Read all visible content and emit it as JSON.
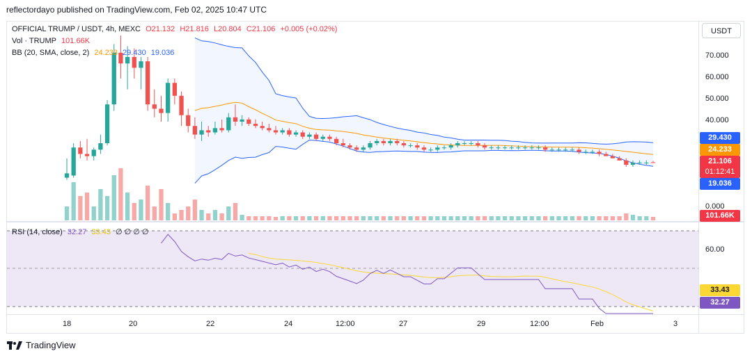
{
  "header": {
    "publisher_line": "reflectordayo published on TradingView.com, Feb 02, 2025 10:47 UTC"
  },
  "symbol": {
    "name": "OFFICIAL TRUMP / USDT, 4h, MEXC",
    "open": "O21.132",
    "high": "H21.816",
    "low": "L20.804",
    "close": "C21.106",
    "change": "+0.005 (+0.02%)"
  },
  "vol_legend": {
    "label": "Vol · TRUMP",
    "value": "101.66K"
  },
  "bb_legend": {
    "label": "BB (20, SMA, close, 2)",
    "basis": "24.233",
    "upper": "29.430",
    "lower": "19.036"
  },
  "rsi_legend": {
    "label": "RSI (14, close)",
    "rsi": "32.27",
    "ma": "33.43",
    "extra": "∅ ∅ ∅ ∅"
  },
  "price_axis": {
    "currency": "USDT",
    "ticks": [
      "70.000",
      "60.000",
      "50.000",
      "40.000",
      "0.000"
    ],
    "tags": {
      "upper": "29.430",
      "basis": "24.233",
      "price": "21.106",
      "countdown": "01:12:41",
      "lower": "19.036",
      "volume": "101.66K"
    }
  },
  "rsi_axis": {
    "ticks": [
      "60.00"
    ],
    "tags": {
      "ma": "33.43",
      "rsi": "32.27"
    }
  },
  "time_axis": {
    "ticks": [
      "18",
      "20",
      "22",
      "24",
      "12:00",
      "27",
      "29",
      "12:00",
      "Feb",
      "3"
    ]
  },
  "footer": {
    "brand": "TradingView"
  },
  "colors": {
    "up": "#26a69a",
    "down": "#ef5350",
    "bb_band": "#2962ff",
    "bb_basis": "#ff9800",
    "rsi_line": "#7e57c2",
    "rsi_ma": "#fdd835",
    "rsi_bg": "#ede7f6"
  },
  "chart_data": {
    "type": "candlestick",
    "candles": [
      {
        "o": 14,
        "h": 23,
        "l": 13,
        "c": 16
      },
      {
        "o": 15,
        "h": 30,
        "l": 14,
        "c": 28
      },
      {
        "o": 28,
        "h": 31,
        "l": 23,
        "c": 25
      },
      {
        "o": 25,
        "h": 32,
        "l": 22,
        "c": 24
      },
      {
        "o": 24,
        "h": 28,
        "l": 22,
        "c": 27
      },
      {
        "o": 27,
        "h": 34,
        "l": 25,
        "c": 30
      },
      {
        "o": 30,
        "h": 50,
        "l": 29,
        "c": 48
      },
      {
        "o": 48,
        "h": 76,
        "l": 45,
        "c": 72
      },
      {
        "o": 72,
        "h": 80,
        "l": 60,
        "c": 67
      },
      {
        "o": 67,
        "h": 75,
        "l": 55,
        "c": 70
      },
      {
        "o": 70,
        "h": 74,
        "l": 60,
        "c": 65
      },
      {
        "o": 65,
        "h": 70,
        "l": 55,
        "c": 68
      },
      {
        "o": 68,
        "h": 70,
        "l": 45,
        "c": 48
      },
      {
        "o": 48,
        "h": 55,
        "l": 42,
        "c": 46
      },
      {
        "o": 46,
        "h": 52,
        "l": 40,
        "c": 44
      },
      {
        "o": 44,
        "h": 60,
        "l": 40,
        "c": 58
      },
      {
        "o": 58,
        "h": 60,
        "l": 48,
        "c": 52
      },
      {
        "o": 52,
        "h": 54,
        "l": 38,
        "c": 43
      },
      {
        "o": 43,
        "h": 46,
        "l": 35,
        "c": 38
      },
      {
        "o": 38,
        "h": 42,
        "l": 32,
        "c": 34
      },
      {
        "o": 34,
        "h": 40,
        "l": 31,
        "c": 36
      },
      {
        "o": 36,
        "h": 38,
        "l": 33,
        "c": 35
      },
      {
        "o": 35,
        "h": 40,
        "l": 34,
        "c": 37
      },
      {
        "o": 37,
        "h": 41,
        "l": 35,
        "c": 36
      },
      {
        "o": 36,
        "h": 44,
        "l": 35,
        "c": 42
      },
      {
        "o": 42,
        "h": 48,
        "l": 38,
        "c": 40
      },
      {
        "o": 40,
        "h": 43,
        "l": 38,
        "c": 41
      },
      {
        "o": 41,
        "h": 42,
        "l": 38,
        "c": 39
      },
      {
        "o": 39,
        "h": 41,
        "l": 37,
        "c": 38
      },
      {
        "o": 38,
        "h": 40,
        "l": 36,
        "c": 37
      },
      {
        "o": 37,
        "h": 39,
        "l": 35,
        "c": 36
      },
      {
        "o": 36,
        "h": 38,
        "l": 34,
        "c": 35
      },
      {
        "o": 35,
        "h": 37,
        "l": 34,
        "c": 36
      },
      {
        "o": 36,
        "h": 37,
        "l": 33,
        "c": 34
      },
      {
        "o": 34,
        "h": 36,
        "l": 33,
        "c": 35
      },
      {
        "o": 35,
        "h": 36,
        "l": 32,
        "c": 33
      },
      {
        "o": 33,
        "h": 35,
        "l": 32,
        "c": 34
      },
      {
        "o": 34,
        "h": 35,
        "l": 31,
        "c": 32
      },
      {
        "o": 32,
        "h": 34,
        "l": 31,
        "c": 33
      },
      {
        "o": 33,
        "h": 34,
        "l": 31,
        "c": 32
      },
      {
        "o": 32,
        "h": 33,
        "l": 29,
        "c": 30
      },
      {
        "o": 30,
        "h": 32,
        "l": 28,
        "c": 29
      },
      {
        "o": 29,
        "h": 30,
        "l": 27,
        "c": 28
      },
      {
        "o": 28,
        "h": 29,
        "l": 26,
        "c": 27
      },
      {
        "o": 27,
        "h": 29,
        "l": 26,
        "c": 28
      },
      {
        "o": 28,
        "h": 31,
        "l": 27,
        "c": 30
      },
      {
        "o": 30,
        "h": 32,
        "l": 29,
        "c": 31
      },
      {
        "o": 31,
        "h": 32,
        "l": 29,
        "c": 30
      },
      {
        "o": 30,
        "h": 32,
        "l": 29,
        "c": 31
      },
      {
        "o": 31,
        "h": 32,
        "l": 29,
        "c": 30
      },
      {
        "o": 30,
        "h": 31,
        "l": 28,
        "c": 29
      },
      {
        "o": 29,
        "h": 30,
        "l": 28,
        "c": 29
      },
      {
        "o": 29,
        "h": 30,
        "l": 27,
        "c": 28
      },
      {
        "o": 28,
        "h": 29,
        "l": 26,
        "c": 27
      },
      {
        "o": 27,
        "h": 28,
        "l": 26,
        "c": 27
      },
      {
        "o": 27,
        "h": 29,
        "l": 26,
        "c": 28
      },
      {
        "o": 28,
        "h": 29,
        "l": 27,
        "c": 28
      },
      {
        "o": 28,
        "h": 30,
        "l": 27,
        "c": 29
      },
      {
        "o": 29,
        "h": 31,
        "l": 28,
        "c": 30
      },
      {
        "o": 30,
        "h": 31,
        "l": 29,
        "c": 30
      },
      {
        "o": 30,
        "h": 31,
        "l": 29,
        "c": 30
      },
      {
        "o": 30,
        "h": 31,
        "l": 28,
        "c": 29
      },
      {
        "o": 29,
        "h": 30,
        "l": 27,
        "c": 28
      },
      {
        "o": 28,
        "h": 29,
        "l": 27,
        "c": 28
      },
      {
        "o": 28,
        "h": 29,
        "l": 27,
        "c": 28
      },
      {
        "o": 28,
        "h": 29,
        "l": 27,
        "c": 28
      },
      {
        "o": 28,
        "h": 29,
        "l": 27,
        "c": 28
      },
      {
        "o": 28,
        "h": 29,
        "l": 27,
        "c": 28
      },
      {
        "o": 28,
        "h": 29,
        "l": 27,
        "c": 28
      },
      {
        "o": 28,
        "h": 29,
        "l": 27,
        "c": 28
      },
      {
        "o": 28,
        "h": 29,
        "l": 27,
        "c": 28
      },
      {
        "o": 28,
        "h": 29,
        "l": 26,
        "c": 27
      },
      {
        "o": 27,
        "h": 28,
        "l": 26,
        "c": 27
      },
      {
        "o": 27,
        "h": 28,
        "l": 26,
        "c": 27
      },
      {
        "o": 27,
        "h": 28,
        "l": 26,
        "c": 27
      },
      {
        "o": 27,
        "h": 28,
        "l": 26,
        "c": 27
      },
      {
        "o": 27,
        "h": 28,
        "l": 25,
        "c": 26
      },
      {
        "o": 26,
        "h": 27,
        "l": 25,
        "c": 26
      },
      {
        "o": 26,
        "h": 27,
        "l": 25,
        "c": 26
      },
      {
        "o": 26,
        "h": 27,
        "l": 24,
        "c": 25
      },
      {
        "o": 25,
        "h": 26,
        "l": 24,
        "c": 24
      },
      {
        "o": 24,
        "h": 25,
        "l": 23,
        "c": 23
      },
      {
        "o": 23,
        "h": 24,
        "l": 22,
        "c": 22
      },
      {
        "o": 22,
        "h": 23,
        "l": 19,
        "c": 20
      },
      {
        "o": 20,
        "h": 22,
        "l": 19,
        "c": 21
      },
      {
        "o": 21,
        "h": 22,
        "l": 20,
        "c": 21
      },
      {
        "o": 21,
        "h": 22,
        "l": 20,
        "c": 21
      },
      {
        "o": 21.132,
        "h": 21.816,
        "l": 20.804,
        "c": 21.106
      }
    ],
    "volumes": [
      20,
      55,
      35,
      40,
      20,
      45,
      35,
      65,
      75,
      40,
      25,
      30,
      50,
      20,
      45,
      25,
      10,
      15,
      20,
      30,
      15,
      10,
      15,
      10,
      20,
      25,
      8,
      6,
      6,
      6,
      6,
      5,
      6,
      6,
      6,
      6,
      6,
      6,
      6,
      6,
      6,
      6,
      6,
      6,
      6,
      6,
      6,
      6,
      6,
      6,
      6,
      6,
      6,
      6,
      6,
      6,
      6,
      6,
      6,
      6,
      6,
      6,
      6,
      6,
      6,
      6,
      6,
      6,
      6,
      6,
      6,
      6,
      6,
      6,
      6,
      6,
      6,
      6,
      6,
      6,
      6,
      6,
      6,
      10,
      8,
      6,
      6,
      5
    ]
  }
}
